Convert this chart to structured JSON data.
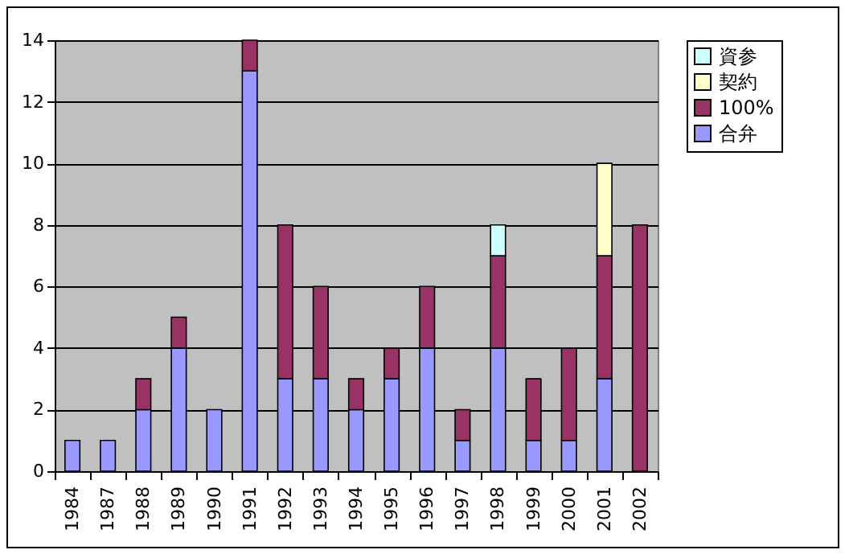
{
  "chart_data": {
    "type": "bar",
    "stacked": true,
    "categories": [
      "1984",
      "1987",
      "1988",
      "1989",
      "1990",
      "1991",
      "1992",
      "1993",
      "1994",
      "1995",
      "1996",
      "1997",
      "1998",
      "1999",
      "2000",
      "2001",
      "2002"
    ],
    "series": [
      {
        "name": "合弁",
        "color": "#9999ff",
        "values": [
          1,
          1,
          2,
          4,
          2,
          13,
          3,
          3,
          2,
          3,
          4,
          1,
          4,
          1,
          1,
          3,
          null
        ]
      },
      {
        "name": "100%",
        "color": "#993366",
        "values": [
          null,
          null,
          1,
          1,
          null,
          1,
          5,
          3,
          1,
          1,
          2,
          1,
          3,
          2,
          3,
          4,
          8
        ]
      },
      {
        "name": "契約",
        "color": "#ffffcc",
        "values": [
          null,
          null,
          null,
          null,
          null,
          null,
          null,
          null,
          null,
          null,
          null,
          null,
          null,
          null,
          null,
          3,
          null
        ]
      },
      {
        "name": "資参",
        "color": "#ccffff",
        "values": [
          null,
          null,
          null,
          null,
          null,
          null,
          null,
          null,
          null,
          null,
          null,
          null,
          1,
          null,
          null,
          null,
          null
        ]
      }
    ],
    "ylim": [
      0,
      14
    ],
    "yticks": [
      0,
      2,
      4,
      6,
      8,
      10,
      12,
      14
    ],
    "grid": "y",
    "legend": "right"
  }
}
